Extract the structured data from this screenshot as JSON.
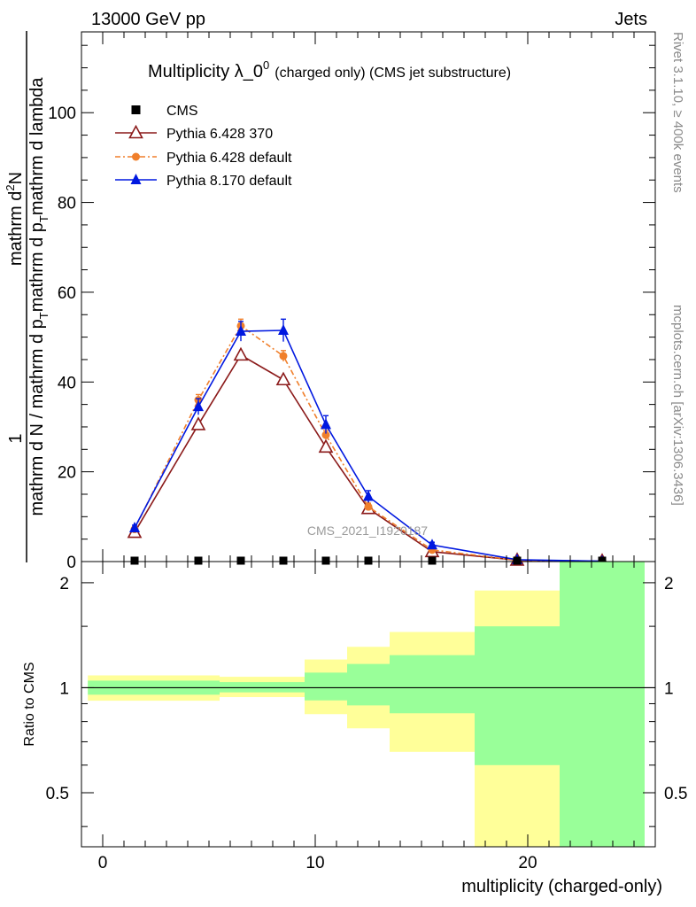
{
  "header": {
    "left": "13000 GeV pp",
    "right": "Jets"
  },
  "side_text": {
    "rivet": "Rivet 3.1.10, ≥ 400k events",
    "mcplots": "mcplots.cern.ch [arXiv:1306.3436]"
  },
  "watermark": "CMS_2021_I1920187",
  "chart_data": [
    {
      "type": "line",
      "title": "Multiplicity λ_0",
      "title_sup": "0",
      "title_suffix": "(charged only) (CMS jet substructure)",
      "ylabel_frac_top": "1",
      "ylabel_num": "mathrm d",
      "ylabel_num_sup": "2",
      "ylabel_num_tail": "N",
      "ylabel_den": "mathrm d N / mathrm d p",
      "ylabel_den_sub": "T",
      "ylabel_den_tail": "mathrm d p",
      "ylabel_den_sub2": "T",
      "ylabel_den_tail2": "mathrm d lambda",
      "ylim": [
        0,
        118
      ],
      "xlim": [
        -1,
        26
      ],
      "yticks": [
        0,
        20,
        40,
        60,
        80,
        100
      ],
      "ytick_labels": [
        "0",
        "20",
        "40",
        "60",
        "80",
        "100"
      ],
      "legend_position": "top-left",
      "series": [
        {
          "name": "CMS",
          "color": "#000000",
          "marker": "square",
          "x": [
            1.5,
            4.5,
            6.5,
            8.5,
            10.5,
            12.5,
            15.5,
            19.5,
            23.5
          ],
          "y": [
            0.2,
            0.2,
            0.2,
            0.2,
            0.2,
            0.2,
            0.2,
            0.2,
            0.2
          ]
        },
        {
          "name": "Pythia 6.428 370",
          "color": "#8b1a1a",
          "marker": "open-triangle",
          "dash": "",
          "x": [
            1.5,
            4.5,
            6.5,
            8.5,
            10.5,
            12.5,
            15.5,
            19.5,
            23.5
          ],
          "y": [
            6.5,
            30.5,
            46,
            40.5,
            25.5,
            11.8,
            2.2,
            0.3,
            0.1
          ]
        },
        {
          "name": "Pythia 6.428 default",
          "color": "#f07f2b",
          "marker": "filled-circle",
          "dash": "6,3,2,3",
          "x": [
            1.5,
            4.5,
            6.5,
            8.5,
            10.5,
            12.5,
            15.5,
            19.5,
            23.5
          ],
          "y": [
            7.2,
            36,
            52.5,
            45.8,
            28.2,
            12.2,
            2.6,
            0.3,
            0.1
          ],
          "yerr": [
            0.5,
            1.2,
            1.5,
            1.2,
            1.0,
            0.8,
            0.4,
            0.1,
            0.05
          ]
        },
        {
          "name": "Pythia 8.170 default",
          "color": "#0018e0",
          "marker": "filled-triangle",
          "dash": "",
          "x": [
            1.5,
            4.5,
            6.5,
            8.5,
            10.5,
            12.5,
            15.5,
            19.5,
            23.5
          ],
          "y": [
            7.5,
            34.5,
            51.3,
            51.5,
            30.5,
            14.5,
            3.7,
            0.4,
            0.1
          ],
          "yerr": [
            0.6,
            1.8,
            2.2,
            2.5,
            2.0,
            1.3,
            0.6,
            0.15,
            0.05
          ]
        }
      ]
    },
    {
      "type": "area",
      "ylabel": "Ratio to CMS",
      "xlabel": "multiplicity (charged-only)",
      "log_y": true,
      "ylim": [
        0.35,
        2.3
      ],
      "xlim": [
        -1,
        26
      ],
      "xticks": [
        0,
        10,
        20
      ],
      "xtick_labels": [
        "0",
        "10",
        "20"
      ],
      "yticks": [
        0.5,
        1,
        2
      ],
      "ytick_labels": [
        "0.5",
        "1",
        "2"
      ],
      "reference_line": 1,
      "bins": [
        {
          "lo": -0.7,
          "hi": 5.5,
          "inner": [
            0.955,
            1.048
          ],
          "outer": [
            0.918,
            1.085
          ]
        },
        {
          "lo": 5.5,
          "hi": 9.5,
          "inner": [
            0.97,
            1.038
          ],
          "outer": [
            0.94,
            1.075
          ]
        },
        {
          "lo": 9.5,
          "hi": 11.5,
          "inner": [
            0.92,
            1.105
          ],
          "outer": [
            0.84,
            1.205
          ]
        },
        {
          "lo": 11.5,
          "hi": 13.5,
          "inner": [
            0.89,
            1.17
          ],
          "outer": [
            0.765,
            1.31
          ]
        },
        {
          "lo": 13.5,
          "hi": 17.5,
          "inner": [
            0.845,
            1.24
          ],
          "outer": [
            0.655,
            1.445
          ]
        },
        {
          "lo": 17.5,
          "hi": 21.5,
          "inner": [
            0.6,
            1.5
          ],
          "outer": [
            0.35,
            1.9
          ]
        },
        {
          "lo": 21.5,
          "hi": 25.5,
          "inner": [
            0.35,
            2.3
          ],
          "outer": [
            0.35,
            2.3
          ]
        }
      ],
      "band_colors": {
        "inner": "#99ff99",
        "outer": "#ffff99"
      }
    }
  ]
}
